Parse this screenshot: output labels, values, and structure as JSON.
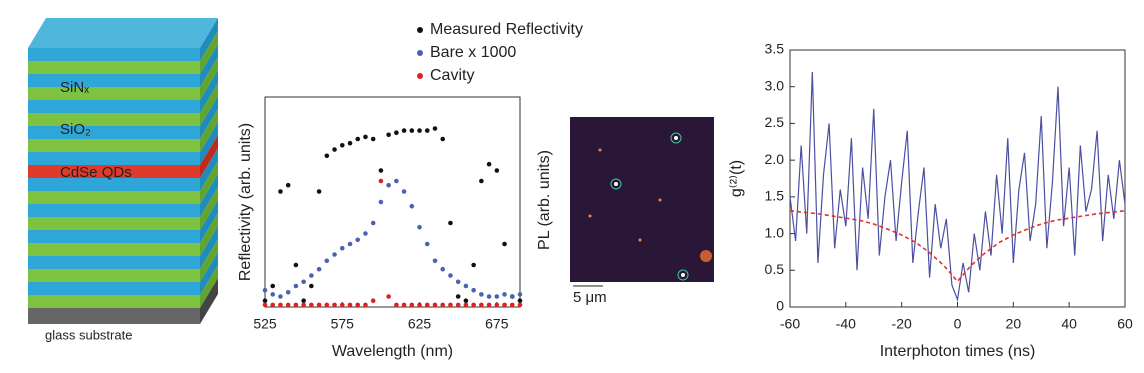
{
  "diagram": {
    "layers": [
      "SiNₓ",
      "SiO₂",
      "CdSe QDs"
    ],
    "substrate": "glass substrate"
  },
  "image": {
    "ylabel": "PL (arb. units)",
    "scale_bar": "5 μm"
  },
  "chart_data": [
    {
      "type": "scatter",
      "xlabel": "Wavelength (nm)",
      "ylabel": "Reflectivity (arb. units)",
      "xlim": [
        525,
        690
      ],
      "xticks": [
        525,
        575,
        625,
        675
      ],
      "ylim": [
        0,
        100
      ],
      "x": [
        525,
        530,
        535,
        540,
        545,
        550,
        555,
        560,
        565,
        570,
        575,
        580,
        585,
        590,
        595,
        600,
        605,
        610,
        615,
        620,
        625,
        630,
        635,
        640,
        645,
        650,
        655,
        660,
        665,
        670,
        675,
        680,
        685,
        690
      ],
      "series": [
        {
          "name": "Measured Reflectivity",
          "color": "#111111",
          "values": [
            3,
            10,
            55,
            58,
            20,
            3,
            10,
            55,
            72,
            75,
            77,
            78,
            80,
            81,
            80,
            65,
            82,
            83,
            84,
            84,
            84,
            84,
            85,
            80,
            40,
            5,
            3,
            20,
            60,
            68,
            65,
            30,
            5,
            3
          ]
        },
        {
          "name": "Bare x 1000",
          "color": "#4a62b4",
          "values": [
            8,
            6,
            5,
            7,
            10,
            12,
            15,
            18,
            22,
            25,
            28,
            30,
            32,
            35,
            40,
            50,
            58,
            60,
            55,
            48,
            38,
            30,
            22,
            18,
            15,
            12,
            10,
            8,
            6,
            5,
            5,
            6,
            5,
            6
          ]
        },
        {
          "name": "Cavity",
          "color": "#e02020",
          "values": [
            1,
            1,
            1,
            1,
            1,
            1,
            1,
            1,
            1,
            1,
            1,
            1,
            1,
            1,
            3,
            60,
            5,
            1,
            1,
            1,
            1,
            1,
            1,
            1,
            1,
            1,
            1,
            1,
            1,
            1,
            1,
            1,
            1,
            1
          ]
        }
      ]
    },
    {
      "type": "line",
      "xlabel": "Interphoton times (ns)",
      "ylabel": "g⁽²⁾(t)",
      "xlim": [
        -60,
        60
      ],
      "xticks": [
        -60,
        -40,
        -20,
        0,
        20,
        40,
        60
      ],
      "ylim": [
        0,
        3.5
      ],
      "yticks": [
        0,
        0.5,
        {
          "value": 1,
          "label": "1.0"
        },
        1.5,
        {
          "value": 2,
          "label": "2.0"
        },
        2.5,
        {
          "value": 3,
          "label": "3.0"
        },
        3.5
      ],
      "series": [
        {
          "color": "#4b4fa0",
          "style": "solid",
          "x": [
            -60,
            -58,
            -56,
            -54,
            -52,
            -50,
            -48,
            -46,
            -44,
            -42,
            -40,
            -38,
            -36,
            -34,
            -32,
            -30,
            -28,
            -26,
            -24,
            -22,
            -20,
            -18,
            -16,
            -14,
            -12,
            -10,
            -8,
            -6,
            -4,
            -2,
            0,
            2,
            4,
            6,
            8,
            10,
            12,
            14,
            16,
            18,
            20,
            22,
            24,
            26,
            28,
            30,
            32,
            34,
            36,
            38,
            40,
            42,
            44,
            46,
            48,
            50,
            52,
            54,
            56,
            58,
            60
          ],
          "values": [
            1.5,
            0.9,
            2.2,
            1.0,
            3.2,
            0.6,
            1.8,
            2.5,
            0.8,
            1.6,
            1.1,
            2.3,
            0.5,
            1.9,
            1.2,
            2.7,
            0.7,
            1.5,
            2.0,
            0.9,
            1.7,
            2.4,
            0.6,
            1.3,
            1.9,
            0.4,
            1.4,
            0.8,
            1.2,
            0.3,
            0.1,
            0.6,
            0.2,
            1.0,
            0.5,
            1.3,
            0.7,
            1.8,
            1.0,
            2.3,
            0.6,
            1.6,
            2.1,
            0.9,
            1.4,
            2.6,
            0.8,
            1.7,
            3.0,
            1.1,
            1.9,
            0.7,
            2.2,
            1.3,
            1.6,
            2.4,
            0.9,
            1.8,
            1.2,
            2.0,
            1.4
          ]
        },
        {
          "color": "#e03030",
          "style": "dashed",
          "x": [
            -60,
            -55,
            -50,
            -45,
            -40,
            -35,
            -30,
            -25,
            -20,
            -15,
            -10,
            -5,
            0,
            5,
            10,
            15,
            20,
            25,
            30,
            35,
            40,
            45,
            50,
            55,
            60
          ],
          "values": [
            1.31,
            1.29,
            1.27,
            1.24,
            1.21,
            1.18,
            1.13,
            1.06,
            0.98,
            0.88,
            0.74,
            0.57,
            0.35,
            0.57,
            0.74,
            0.88,
            0.98,
            1.06,
            1.13,
            1.18,
            1.21,
            1.24,
            1.27,
            1.29,
            1.31
          ]
        }
      ]
    }
  ]
}
